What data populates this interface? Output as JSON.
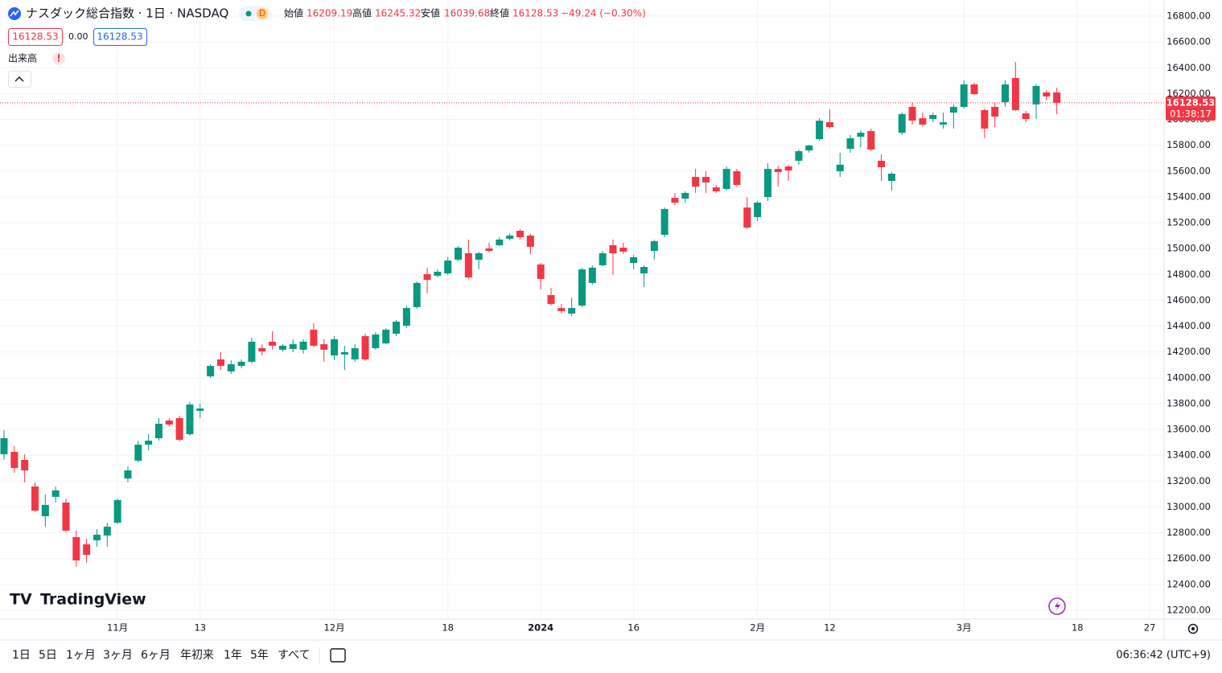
{
  "header": {
    "symbol": "ナスダック総合指数 · 1日 · NASDAQ",
    "badge": "D",
    "labels": {
      "open": "始値",
      "high": "高値",
      "low": "安値",
      "close": "終値"
    },
    "change": "−49.24 (−0.30%)",
    "spread": "0.00",
    "volume": "出来高",
    "alert": "!",
    "countdown": "01:38:17"
  },
  "toolbar": {
    "timeframes": [
      "1日",
      "5日",
      "1ヶ月",
      "3ヶ月",
      "6ヶ月",
      "年初来",
      "1年",
      "5年",
      "すべて"
    ],
    "clock": "06:36:42 (UTC+9)",
    "brand": "TradingView"
  },
  "chart_data": {
    "type": "candlestick",
    "up_color": "#089981",
    "down_color": "#f23645",
    "categories": [
      null,
      null,
      null,
      null,
      null,
      null,
      null,
      null,
      null,
      null,
      null,
      "11月",
      null,
      null,
      null,
      null,
      null,
      null,
      null,
      "13",
      null,
      null,
      null,
      null,
      null,
      null,
      null,
      null,
      null,
      null,
      null,
      null,
      "12月",
      null,
      null,
      null,
      null,
      null,
      null,
      null,
      null,
      null,
      null,
      "18",
      null,
      null,
      null,
      null,
      null,
      null,
      null,
      null,
      "2024",
      null,
      null,
      null,
      null,
      null,
      null,
      null,
      null,
      "16",
      null,
      null,
      null,
      null,
      null,
      null,
      null,
      null,
      null,
      null,
      null,
      "2月",
      null,
      null,
      null,
      null,
      null,
      null,
      "12",
      null,
      null,
      null,
      null,
      null,
      null,
      null,
      null,
      null,
      null,
      null,
      null,
      "3月",
      null,
      null,
      null,
      null,
      null,
      null,
      null,
      null,
      null,
      null,
      "18",
      null,
      null,
      null,
      null,
      null,
      null,
      "27"
    ],
    "open": [
      13408,
      13426,
      13364,
      13158,
      12928,
      13078,
      13034,
      12766,
      12710,
      12741,
      12779,
      12878,
      13220,
      13358,
      13482,
      13532,
      13669,
      13688,
      13563,
      13744,
      14011,
      14142,
      14049,
      14092,
      14124,
      14229,
      14279,
      14217,
      14223,
      14217,
      14372,
      14260,
      14173,
      14180,
      14142,
      14322,
      14229,
      14266,
      14341,
      14403,
      14547,
      14802,
      14790,
      14808,
      14914,
      14964,
      14914,
      15001,
      15026,
      15076,
      15138,
      15101,
      14877,
      14640,
      14540,
      14497,
      14559,
      14734,
      14871,
      15026,
      15007,
      14889,
      14808,
      14982,
      15107,
      15393,
      15387,
      15555,
      15555,
      15474,
      15462,
      15599,
      15318,
      15244,
      15399,
      15617,
      15636,
      15680,
      15760,
      15847,
      15978,
      15599,
      15773,
      15866,
      15910,
      15680,
      15524,
      15897,
      16097,
      16009,
      16003,
      15960,
      16053,
      16097,
      16271,
      16072,
      16097,
      16134,
      16321,
      16047,
      16116,
      16209,
      16209.19,
      null,
      null,
      null,
      null,
      null,
      null,
      null,
      null,
      null
    ],
    "high": [
      13594,
      13470,
      13408,
      13190,
      13096,
      13158,
      13065,
      12816,
      12754,
      12828,
      12878,
      13065,
      13314,
      13513,
      13563,
      13688,
      13688,
      13706,
      13812,
      13800,
      14105,
      14198,
      14136,
      14142,
      14310,
      14260,
      14360,
      14260,
      14298,
      14298,
      14422,
      14298,
      14322,
      14248,
      14260,
      14341,
      14353,
      14384,
      14447,
      14559,
      14746,
      14852,
      14839,
      14933,
      15020,
      15070,
      14976,
      15045,
      15088,
      15119,
      15150,
      15113,
      14889,
      14696,
      14572,
      14621,
      14852,
      14871,
      14982,
      15070,
      15045,
      14951,
      14871,
      15070,
      15318,
      15431,
      15443,
      15617,
      15599,
      15493,
      15636,
      15617,
      15399,
      15368,
      15661,
      15642,
      15649,
      15767,
      15804,
      16009,
      16078,
      15742,
      15879,
      15916,
      15928,
      15730,
      15592,
      16053,
      16128,
      16053,
      16053,
      16053,
      16116,
      16302,
      16284,
      16084,
      16128,
      16302,
      16445,
      16066,
      16271,
      16227,
      16245.32,
      null,
      null,
      null,
      null,
      null,
      null,
      null,
      null,
      null
    ],
    "low": [
      13364,
      13264,
      13190,
      12959,
      12847,
      13034,
      12803,
      12536,
      12567,
      12691,
      12691,
      12866,
      13190,
      13345,
      13438,
      13513,
      13625,
      13507,
      13551,
      13688,
      13999,
      14061,
      14030,
      14074,
      14111,
      14173,
      14217,
      14204,
      14198,
      14186,
      14235,
      14124,
      14136,
      14061,
      14124,
      14130,
      14217,
      14260,
      14322,
      14384,
      14534,
      14652,
      14777,
      14796,
      14902,
      14765,
      14840,
      14970,
      15020,
      15063,
      15070,
      14958,
      14684,
      14559,
      14497,
      14478,
      14547,
      14721,
      14864,
      14796,
      14958,
      14840,
      14702,
      14914,
      15088,
      15337,
      15356,
      15431,
      15431,
      15431,
      15449,
      15480,
      15150,
      15213,
      15368,
      15480,
      15524,
      15649,
      15742,
      15835,
      15928,
      15555,
      15742,
      15785,
      15754,
      15524,
      15449,
      15879,
      15960,
      15947,
      15978,
      15929,
      15929,
      16084,
      16190,
      15854,
      15941,
      16097,
      16066,
      15978,
      16003,
      16147,
      16039.68,
      null,
      null,
      null,
      null,
      null,
      null,
      null,
      null,
      null
    ],
    "close": [
      13532,
      13302,
      13283,
      12972,
      13016,
      13128,
      12816,
      12586,
      12629,
      12785,
      12847,
      13053,
      13283,
      13482,
      13513,
      13644,
      13638,
      13520,
      13793,
      13762,
      14092,
      14092,
      14105,
      14124,
      14279,
      14204,
      14248,
      14248,
      14260,
      14279,
      14248,
      14217,
      14298,
      14198,
      14229,
      14142,
      14335,
      14372,
      14434,
      14540,
      14734,
      14758,
      14821,
      14908,
      15007,
      14777,
      14964,
      14982,
      15070,
      15101,
      15088,
      15014,
      14765,
      14572,
      14516,
      14540,
      14839,
      14852,
      14964,
      14964,
      14976,
      14933,
      14858,
      15057,
      15306,
      15356,
      15431,
      15480,
      15512,
      15443,
      15617,
      15493,
      15163,
      15356,
      15617,
      15592,
      15605,
      15754,
      15798,
      15990,
      15941,
      15649,
      15854,
      15897,
      15767,
      15630,
      15580,
      16041,
      15991,
      15960,
      16034,
      15978,
      16097,
      16271,
      16196,
      15929,
      16022,
      16271,
      16072,
      16003,
      16259,
      16178,
      16128.53,
      null,
      null,
      null,
      null,
      null,
      null,
      null,
      null,
      null
    ],
    "ylim": [
      12200,
      16800
    ],
    "yticks": [
      {
        "value": 12200,
        "label": "12200.00"
      },
      {
        "value": 12400,
        "label": "12400.00"
      },
      {
        "value": 12600,
        "label": "12600.00"
      },
      {
        "value": 12800,
        "label": "12800.00"
      },
      {
        "value": 13000,
        "label": "13000.00"
      },
      {
        "value": 13200,
        "label": "13200.00"
      },
      {
        "value": 13400,
        "label": "13400.00"
      },
      {
        "value": 13600,
        "label": "13600.00"
      },
      {
        "value": 13800,
        "label": "13800.00"
      },
      {
        "value": 14000,
        "label": "14000.00"
      },
      {
        "value": 14200,
        "label": "14200.00"
      },
      {
        "value": 14400,
        "label": "14400.00"
      },
      {
        "value": 14600,
        "label": "14600.00"
      },
      {
        "value": 14800,
        "label": "14800.00"
      },
      {
        "value": 15000,
        "label": "15000.00"
      },
      {
        "value": 15200,
        "label": "15200.00"
      },
      {
        "value": 15400,
        "label": "15400.00"
      },
      {
        "value": 15600,
        "label": "15600.00"
      },
      {
        "value": 15800,
        "label": "15800.00"
      },
      {
        "value": 16000,
        "label": "16000.00"
      },
      {
        "value": 16200,
        "label": "16200.00"
      },
      {
        "value": 16400,
        "label": "16400.00"
      },
      {
        "value": 16600,
        "label": "16600.00"
      },
      {
        "value": 16800,
        "label": "16800.00"
      }
    ],
    "grid": true
  }
}
